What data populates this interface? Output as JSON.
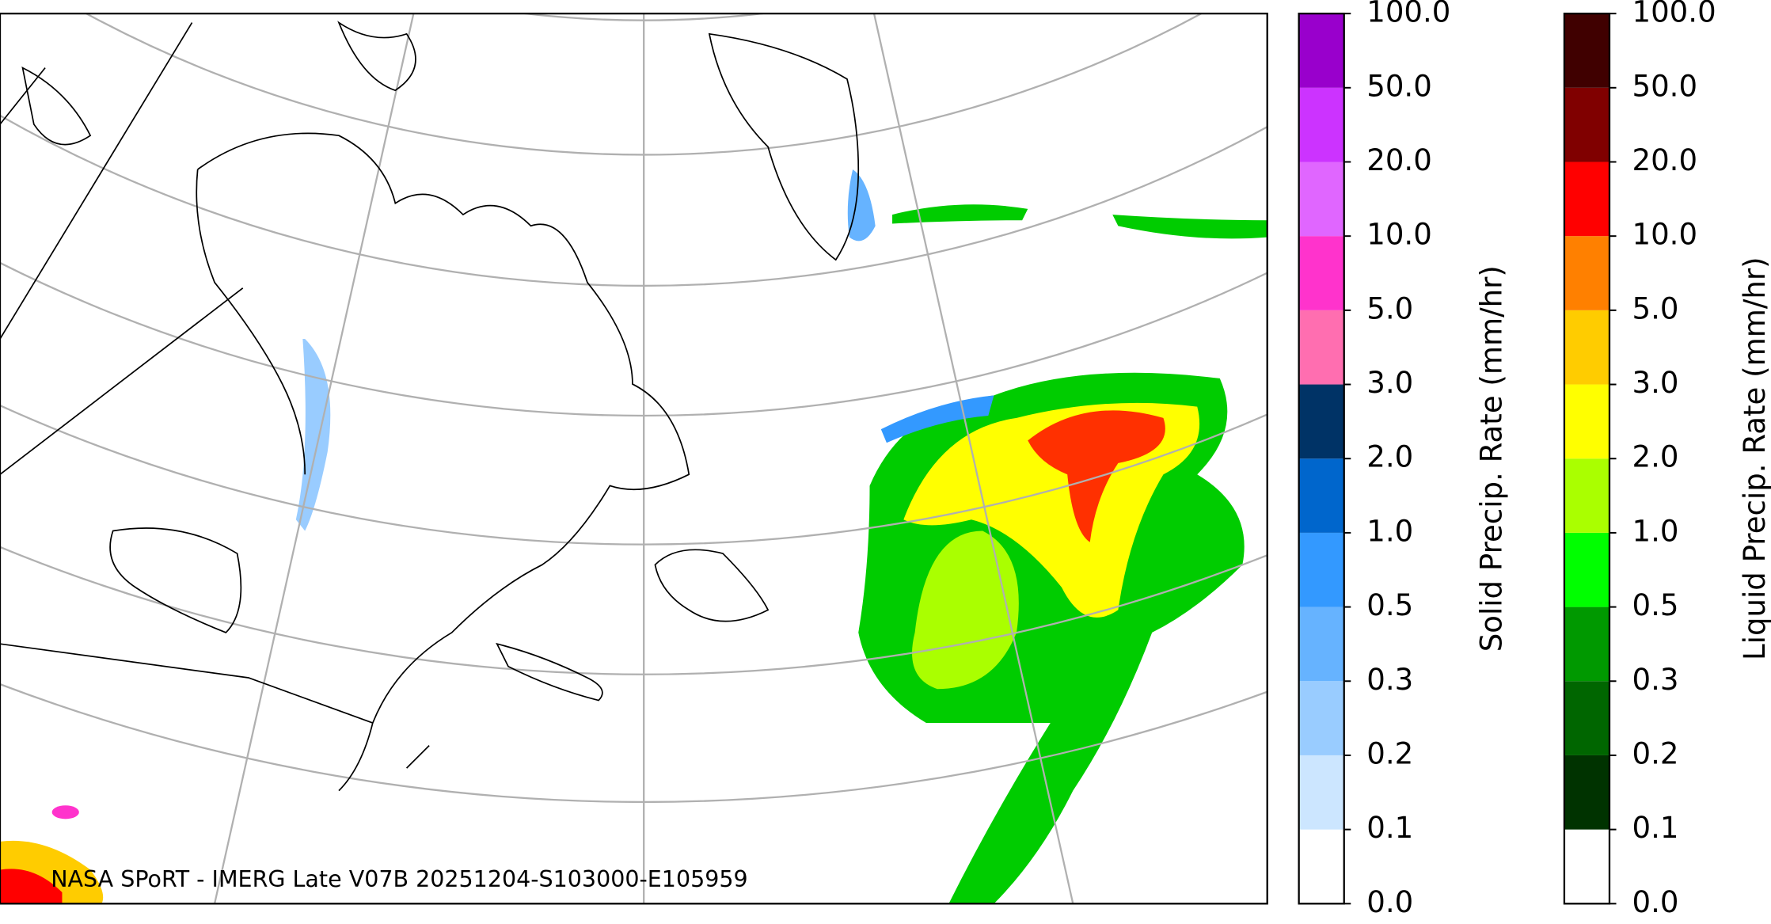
{
  "map": {
    "annotation": "NASA SPoRT - IMERG Late V07B 20251204-S103000-E105959",
    "colorbars": [
      {
        "label": "Solid Precip. Rate (mm/hr)",
        "ticks": [
          {
            "value": 0,
            "label": "0.0"
          },
          {
            "value": 0.1,
            "label": "0.1"
          },
          {
            "value": 0.2,
            "label": "0.2"
          },
          {
            "value": 0.3,
            "label": "0.3"
          },
          {
            "value": 0.5,
            "label": "0.5"
          },
          {
            "value": 1,
            "label": "1.0"
          },
          {
            "value": 2,
            "label": "2.0"
          },
          {
            "value": 3,
            "label": "3.0"
          },
          {
            "value": 5,
            "label": "5.0"
          },
          {
            "value": 10,
            "label": "10.0"
          },
          {
            "value": 20,
            "label": "20.0"
          },
          {
            "value": 50,
            "label": "50.0"
          },
          {
            "value": 100,
            "label": "100.0"
          }
        ],
        "colors": [
          "#ffffff",
          "#cce6ff",
          "#99ccff",
          "#66b3ff",
          "#3399ff",
          "#0066cc",
          "#003366",
          "#ff6eb0",
          "#ff33cc",
          "#e066ff",
          "#cc33ff",
          "#9900cc"
        ]
      },
      {
        "label": "Liquid Precip. Rate (mm/hr)",
        "ticks": [
          {
            "value": 0,
            "label": "0.0"
          },
          {
            "value": 0.1,
            "label": "0.1"
          },
          {
            "value": 0.2,
            "label": "0.2"
          },
          {
            "value": 0.3,
            "label": "0.3"
          },
          {
            "value": 0.5,
            "label": "0.5"
          },
          {
            "value": 1,
            "label": "1.0"
          },
          {
            "value": 2,
            "label": "2.0"
          },
          {
            "value": 3,
            "label": "3.0"
          },
          {
            "value": 5,
            "label": "5.0"
          },
          {
            "value": 10,
            "label": "10.0"
          },
          {
            "value": 20,
            "label": "20.0"
          },
          {
            "value": 50,
            "label": "50.0"
          },
          {
            "value": 100,
            "label": "100.0"
          }
        ],
        "colors": [
          "#ffffff",
          "#003300",
          "#006600",
          "#009900",
          "#00ff00",
          "#aaff00",
          "#ffff00",
          "#ffcc00",
          "#ff8000",
          "#ff0000",
          "#800000",
          "#400000"
        ]
      }
    ]
  }
}
